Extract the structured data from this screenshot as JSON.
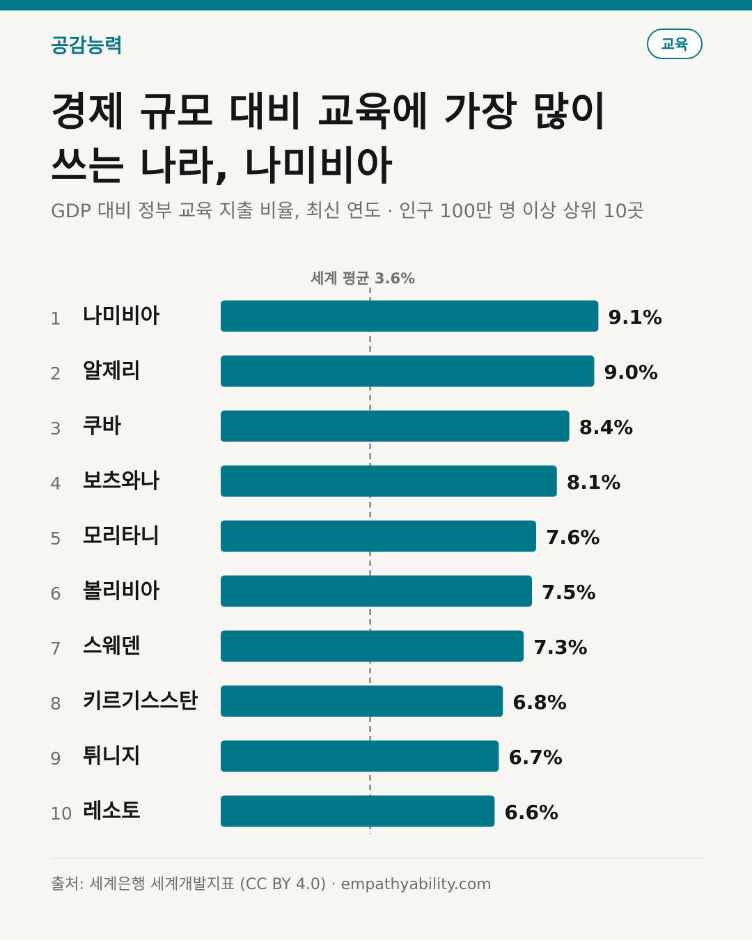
{
  "brand": "공감능력",
  "tag": "교육",
  "title_lines": [
    "경제 규모 대비 교육에 가장 많이",
    "쓰는 나라, 나미비아"
  ],
  "subtitle": "GDP 대비 정부 교육 지출 비율, 최신 연도 · 인구 100만 명 이상 상위 10곳",
  "source": "출처: 세계은행 세계개발지표 (CC BY 4.0) · empathyability.com",
  "colors": {
    "bar": "#00788a",
    "accent": "#0a7585",
    "text": "#151515",
    "muted": "#707070",
    "background": "#f7f6f2"
  },
  "chart_data": {
    "type": "bar",
    "orientation": "horizontal",
    "reference_line": {
      "label": "세계 평균 3.6%",
      "value": 3.6
    },
    "ranks": [
      "1",
      "2",
      "3",
      "4",
      "5",
      "6",
      "7",
      "8",
      "9",
      "10"
    ],
    "categories": [
      "나미비아",
      "알제리",
      "쿠바",
      "보츠와나",
      "모리타니",
      "볼리비아",
      "스웨덴",
      "키르기스스탄",
      "튀니지",
      "레소토"
    ],
    "values": [
      9.1,
      9.0,
      8.4,
      8.1,
      7.6,
      7.5,
      7.3,
      6.8,
      6.7,
      6.6
    ],
    "value_labels": [
      "9.1%",
      "9.0%",
      "8.4%",
      "8.1%",
      "7.6%",
      "7.5%",
      "7.3%",
      "6.8%",
      "6.7%",
      "6.6%"
    ],
    "xlim": [
      0,
      10
    ],
    "grid": false
  }
}
